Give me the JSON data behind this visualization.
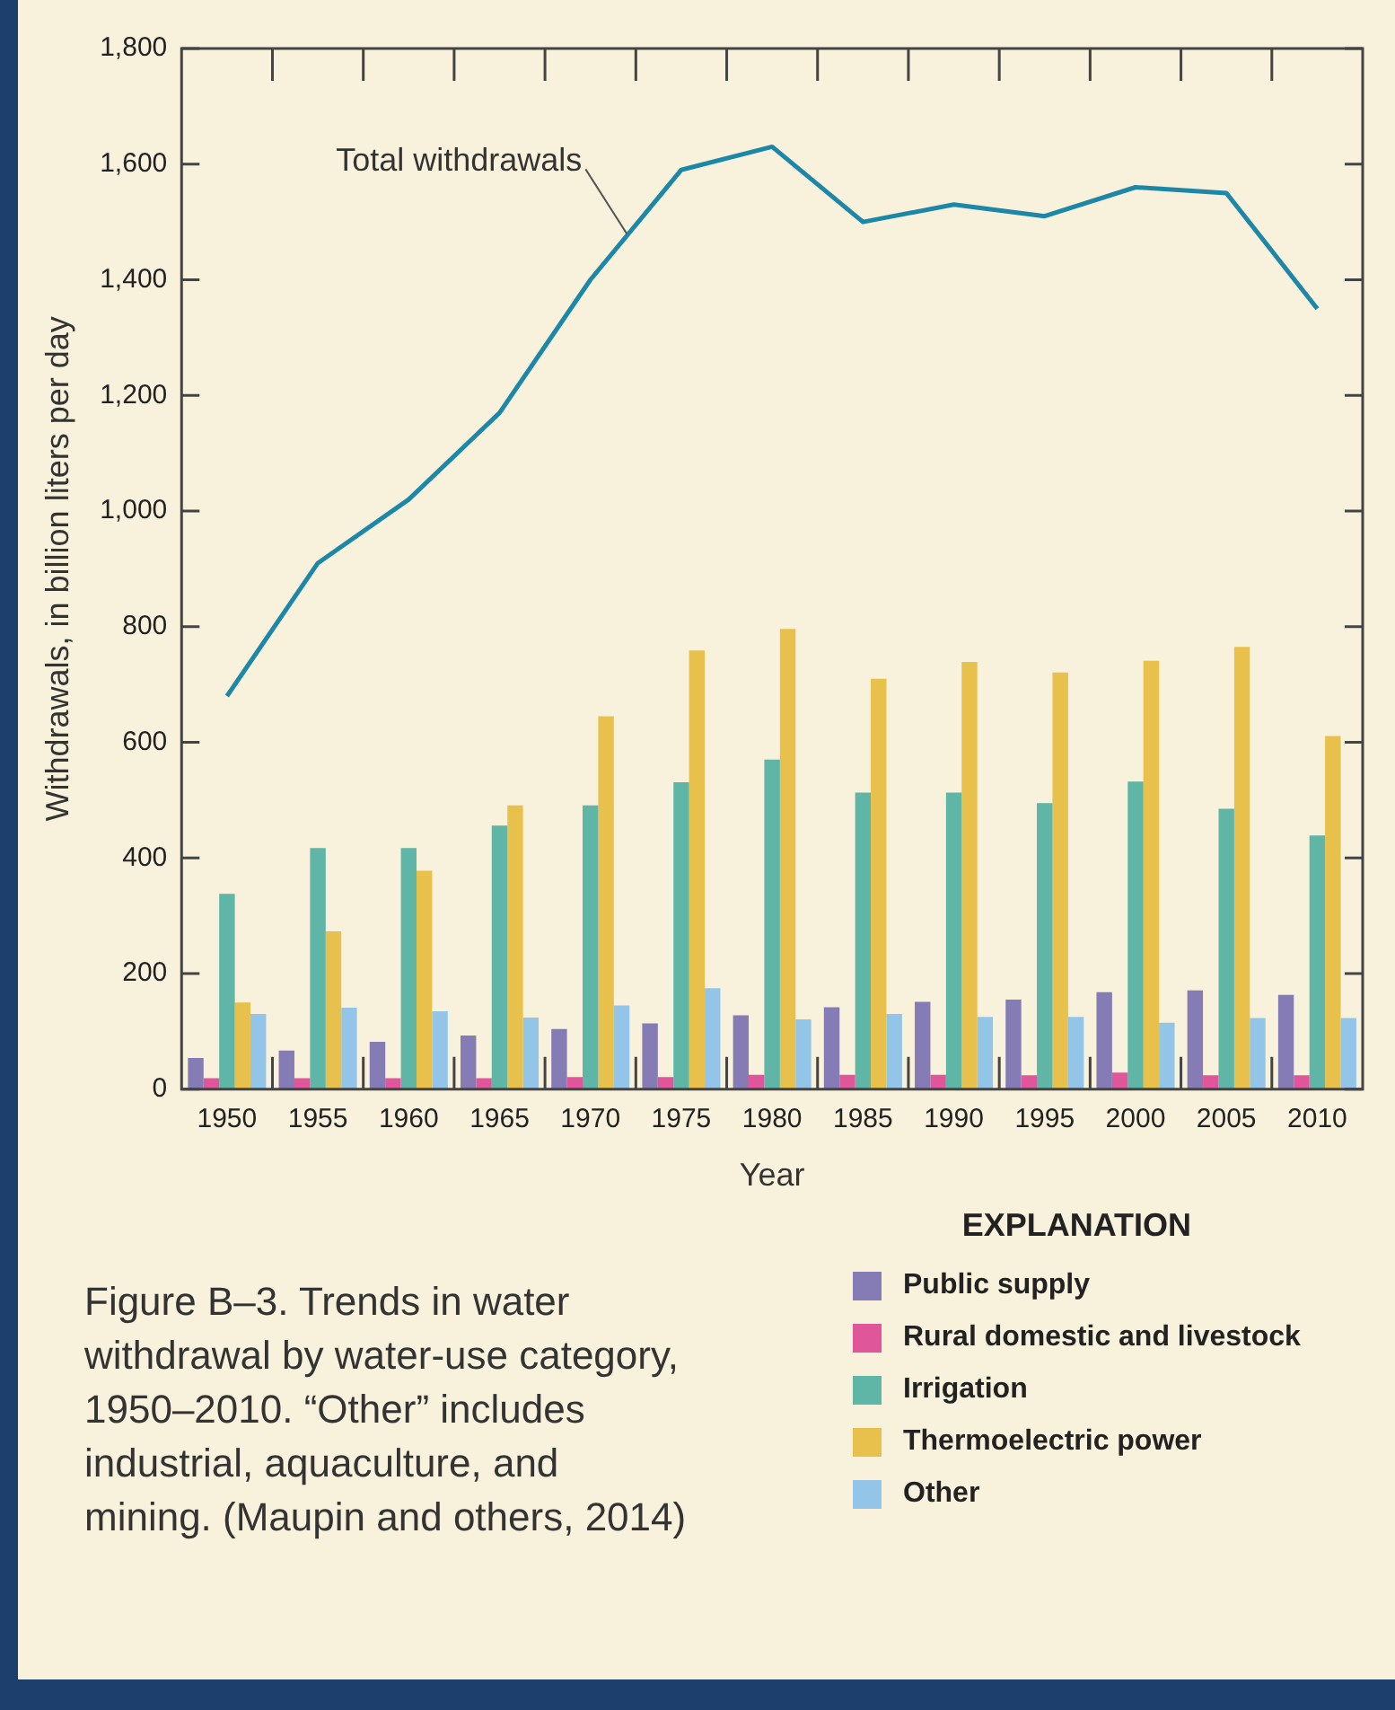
{
  "chart_data": {
    "type": "bar",
    "title": "Figure B–3.    Trends in water withdrawal by water-use category, 1950–2010. “Other” includes industrial, aquaculture, and mining. (Maupin and others, 2014)",
    "xlabel": "Year",
    "ylabel": "Withdrawals, in billion liters per day",
    "legend_title": "EXPLANATION",
    "legend": "bottom right",
    "grid": false,
    "categories": [
      "1950",
      "1955",
      "1960",
      "1965",
      "1970",
      "1975",
      "1980",
      "1985",
      "1990",
      "1995",
      "2000",
      "2005",
      "2010"
    ],
    "ylim": [
      0,
      1800
    ],
    "yticks": [
      0,
      200,
      400,
      600,
      800,
      {
        "value": 1000,
        "label": "1,000"
      },
      {
        "value": 1200,
        "label": "1,200"
      },
      {
        "value": 1400,
        "label": "1,400"
      },
      {
        "value": 1600,
        "label": "1,600"
      },
      {
        "value": 1800,
        "label": "1,800"
      }
    ],
    "series": [
      {
        "name": "Public supply",
        "color": "#857bb5",
        "values": [
          54,
          67,
          82,
          93,
          104,
          114,
          128,
          142,
          151,
          155,
          168,
          171,
          163
        ]
      },
      {
        "name": "Rural domestic and livestock",
        "color": "#e0569a",
        "values": [
          19,
          19,
          19,
          19,
          21,
          21,
          25,
          25,
          25,
          24,
          29,
          24,
          24
        ]
      },
      {
        "name": "Irrigation",
        "color": "#5fb5a6",
        "values": [
          338,
          417,
          417,
          456,
          491,
          531,
          570,
          513,
          513,
          495,
          532,
          485,
          439
        ]
      },
      {
        "name": "Thermoelectric power",
        "color": "#e8c14c",
        "values": [
          150,
          273,
          378,
          491,
          645,
          759,
          796,
          710,
          739,
          721,
          741,
          765,
          611
        ]
      },
      {
        "name": "Other",
        "color": "#93c5e8",
        "values": [
          130,
          141,
          135,
          124,
          145,
          175,
          121,
          130,
          125,
          125,
          115,
          123,
          123
        ]
      },
      {
        "name": "Total withdrawals",
        "type": "line",
        "color": "#1d87a8",
        "values": [
          680,
          910,
          1020,
          1170,
          1400,
          1590,
          1630,
          1500,
          1530,
          1510,
          1560,
          1550,
          1350
        ]
      }
    ]
  }
}
